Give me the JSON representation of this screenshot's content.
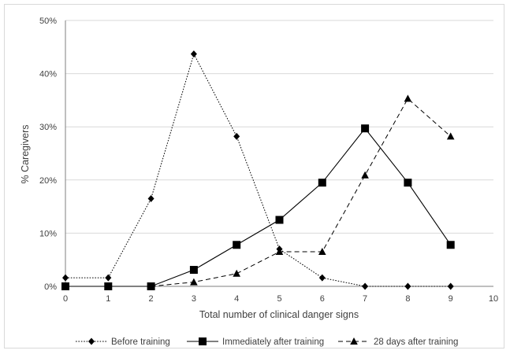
{
  "chart_data": {
    "type": "line",
    "xlabel": "Total number  of clinical danger signs",
    "ylabel": "% Caregivers",
    "xlim": [
      0,
      10
    ],
    "ylim": [
      0,
      50
    ],
    "x_ticks": [
      "0",
      "1",
      "2",
      "3",
      "4",
      "5",
      "6",
      "7",
      "8",
      "9",
      "10"
    ],
    "y_ticks": [
      "0%",
      "10%",
      "20%",
      "30%",
      "40%",
      "50%"
    ],
    "grid": "horizontal",
    "legend_position": "bottom",
    "series": [
      {
        "name": "Before training",
        "marker": "diamond",
        "line_style": "dotted",
        "x": [
          0,
          1,
          2,
          3,
          4,
          5,
          6,
          7,
          8,
          9
        ],
        "values": [
          1.6,
          1.6,
          16.5,
          43.7,
          28.2,
          7.0,
          1.6,
          0,
          0,
          0
        ]
      },
      {
        "name": "Immediately after training",
        "marker": "square",
        "line_style": "solid",
        "x": [
          0,
          1,
          2,
          3,
          4,
          5,
          6,
          7,
          8,
          9
        ],
        "values": [
          0,
          0,
          0,
          3.1,
          7.8,
          12.5,
          19.5,
          29.7,
          19.5,
          7.8
        ]
      },
      {
        "name": "28 days after training",
        "marker": "triangle",
        "line_style": "dashed",
        "x": [
          2,
          3,
          4,
          5,
          6,
          7,
          8,
          9
        ],
        "values": [
          0,
          0.8,
          2.4,
          6.5,
          6.5,
          20.9,
          35.3,
          28.2
        ]
      }
    ],
    "colors": {
      "line": "#000000",
      "grid": "#d9d9d9",
      "axis": "#7f7f7f",
      "text": "#404040"
    }
  }
}
